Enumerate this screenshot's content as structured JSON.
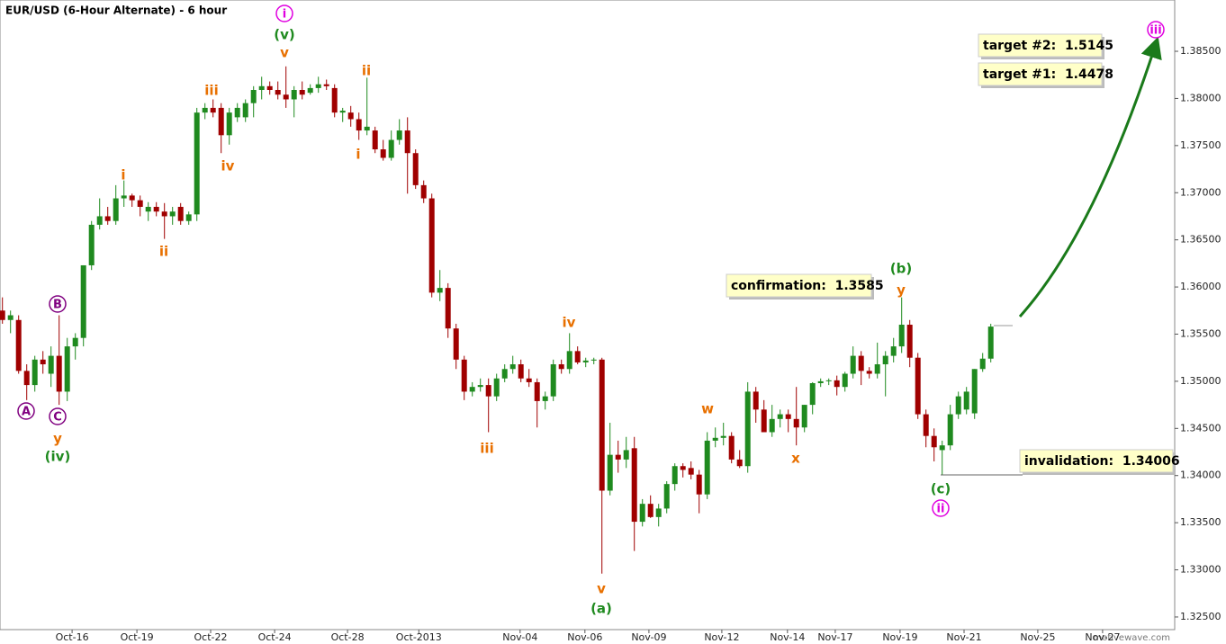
{
  "chart_data": {
    "type": "candlestick",
    "title": "EUR/USD (6-Hour Alternate) - 6 hour",
    "up_color": "#1f8a1f",
    "down_color": "#a00000",
    "ylim": [
      1.32366,
      1.39044
    ],
    "yticks": [
      {
        "value": 1.325,
        "label": "1.32500"
      },
      {
        "value": 1.33,
        "label": "1.33000"
      },
      {
        "value": 1.335,
        "label": "1.33500"
      },
      {
        "value": 1.34,
        "label": "1.34000"
      },
      {
        "value": 1.345,
        "label": "1.34500"
      },
      {
        "value": 1.35,
        "label": "1.35000"
      },
      {
        "value": 1.355,
        "label": "1.35500"
      },
      {
        "value": 1.36,
        "label": "1.36000"
      },
      {
        "value": 1.365,
        "label": "1.36500"
      },
      {
        "value": 1.37,
        "label": "1.37000"
      },
      {
        "value": 1.375,
        "label": "1.37500"
      },
      {
        "value": 1.38,
        "label": "1.38000"
      },
      {
        "value": 1.385,
        "label": "1.38500"
      }
    ],
    "xlim": [
      -0.3,
      144.7
    ],
    "xticks": [
      {
        "value": 8.6,
        "label": "Oct-16"
      },
      {
        "value": 16.6,
        "label": "Oct-19"
      },
      {
        "value": 25.7,
        "label": "Oct-22"
      },
      {
        "value": 33.6,
        "label": "Oct-24"
      },
      {
        "value": 42.6,
        "label": "Oct-28"
      },
      {
        "value": 51.4,
        "label": "Oct-2013"
      },
      {
        "value": 63.9,
        "label": "Nov-04"
      },
      {
        "value": 71.9,
        "label": "Nov-06"
      },
      {
        "value": 79.8,
        "label": "Nov-09"
      },
      {
        "value": 88.8,
        "label": "Nov-12"
      },
      {
        "value": 96.9,
        "label": "Nov-14"
      },
      {
        "value": 102.8,
        "label": "Nov-17"
      },
      {
        "value": 110.8,
        "label": "Nov-19"
      },
      {
        "value": 118.7,
        "label": "Nov-21"
      },
      {
        "value": 127.8,
        "label": "Nov-25"
      },
      {
        "value": 135.8,
        "label": "Nov-27"
      }
    ],
    "candles": [
      [
        1.3575,
        1.3589,
        1.3561,
        1.3565
      ],
      [
        1.3565,
        1.3575,
        1.3551,
        1.357
      ],
      [
        1.3565,
        1.357,
        1.3508,
        1.3511
      ],
      [
        1.3511,
        1.3518,
        1.348,
        1.3496
      ],
      [
        1.3496,
        1.3527,
        1.3489,
        1.3523
      ],
      [
        1.3523,
        1.3532,
        1.3508,
        1.3518
      ],
      [
        1.3508,
        1.3537,
        1.3494,
        1.3527
      ],
      [
        1.3527,
        1.357,
        1.3475,
        1.3489
      ],
      [
        1.3489,
        1.3546,
        1.3479,
        1.3537
      ],
      [
        1.3537,
        1.3551,
        1.3523,
        1.3546
      ],
      [
        1.3546,
        1.3623,
        1.3537,
        1.3623
      ],
      [
        1.3623,
        1.367,
        1.3618,
        1.3666
      ],
      [
        1.3666,
        1.3694,
        1.3661,
        1.3675
      ],
      [
        1.3675,
        1.3685,
        1.3666,
        1.367
      ],
      [
        1.367,
        1.3708,
        1.3666,
        1.3694
      ],
      [
        1.3694,
        1.3713,
        1.3685,
        1.3697
      ],
      [
        1.3697,
        1.3699,
        1.3685,
        1.3692
      ],
      [
        1.3692,
        1.3697,
        1.3675,
        1.3685
      ],
      [
        1.368,
        1.369,
        1.367,
        1.3685
      ],
      [
        1.3685,
        1.369,
        1.3675,
        1.368
      ],
      [
        1.368,
        1.3689,
        1.3651,
        1.3675
      ],
      [
        1.3675,
        1.3685,
        1.3666,
        1.368
      ],
      [
        1.3685,
        1.3689,
        1.3666,
        1.367
      ],
      [
        1.367,
        1.368,
        1.3666,
        1.3677
      ],
      [
        1.3677,
        1.379,
        1.367,
        1.3785
      ],
      [
        1.3785,
        1.3795,
        1.3778,
        1.379
      ],
      [
        1.379,
        1.3799,
        1.378,
        1.3785
      ],
      [
        1.379,
        1.3795,
        1.3742,
        1.3761
      ],
      [
        1.3761,
        1.379,
        1.3751,
        1.3785
      ],
      [
        1.378,
        1.3795,
        1.3775,
        1.379
      ],
      [
        1.378,
        1.3799,
        1.3775,
        1.3795
      ],
      [
        1.3795,
        1.3813,
        1.378,
        1.3809
      ],
      [
        1.3809,
        1.3823,
        1.3799,
        1.3813
      ],
      [
        1.3813,
        1.3818,
        1.3804,
        1.3809
      ],
      [
        1.3809,
        1.3818,
        1.3799,
        1.3804
      ],
      [
        1.3804,
        1.3834,
        1.379,
        1.3799
      ],
      [
        1.3799,
        1.3813,
        1.378,
        1.3809
      ],
      [
        1.3809,
        1.3818,
        1.3799,
        1.3804
      ],
      [
        1.3806,
        1.3815,
        1.3804,
        1.3811
      ],
      [
        1.3811,
        1.3823,
        1.3806,
        1.3815
      ],
      [
        1.3815,
        1.382,
        1.3809,
        1.3813
      ],
      [
        1.3811,
        1.3815,
        1.378,
        1.3785
      ],
      [
        1.3785,
        1.379,
        1.3775,
        1.3787
      ],
      [
        1.3785,
        1.3792,
        1.377,
        1.3778
      ],
      [
        1.3778,
        1.3785,
        1.3756,
        1.3766
      ],
      [
        1.3766,
        1.3822,
        1.3761,
        1.377
      ],
      [
        1.3766,
        1.377,
        1.3742,
        1.3746
      ],
      [
        1.3746,
        1.3756,
        1.3734,
        1.3737
      ],
      [
        1.3737,
        1.3766,
        1.3734,
        1.3756
      ],
      [
        1.3756,
        1.3778,
        1.3751,
        1.3766
      ],
      [
        1.3766,
        1.378,
        1.3699,
        1.3742
      ],
      [
        1.3742,
        1.3746,
        1.3704,
        1.3708
      ],
      [
        1.3708,
        1.3713,
        1.3689,
        1.3694
      ],
      [
        1.3694,
        1.3699,
        1.3589,
        1.3594
      ],
      [
        1.3594,
        1.3618,
        1.3585,
        1.3599
      ],
      [
        1.3599,
        1.3604,
        1.3546,
        1.3556
      ],
      [
        1.3556,
        1.3561,
        1.3513,
        1.3523
      ],
      [
        1.3523,
        1.3527,
        1.348,
        1.3489
      ],
      [
        1.3489,
        1.3499,
        1.3484,
        1.3494
      ],
      [
        1.3494,
        1.3503,
        1.3489,
        1.3496
      ],
      [
        1.3496,
        1.3503,
        1.3446,
        1.3484
      ],
      [
        1.3484,
        1.3508,
        1.3479,
        1.3503
      ],
      [
        1.3503,
        1.3518,
        1.3499,
        1.3513
      ],
      [
        1.3513,
        1.3527,
        1.3508,
        1.3518
      ],
      [
        1.3518,
        1.3523,
        1.3499,
        1.3503
      ],
      [
        1.3503,
        1.3513,
        1.3494,
        1.3499
      ],
      [
        1.3499,
        1.3503,
        1.3451,
        1.3479
      ],
      [
        1.3479,
        1.3489,
        1.347,
        1.3484
      ],
      [
        1.3484,
        1.3523,
        1.3479,
        1.3518
      ],
      [
        1.3518,
        1.3523,
        1.3508,
        1.3513
      ],
      [
        1.3513,
        1.3551,
        1.3508,
        1.3532
      ],
      [
        1.3532,
        1.3537,
        1.3518,
        1.352
      ],
      [
        1.352,
        1.3525,
        1.3515,
        1.3522
      ],
      [
        1.3522,
        1.3525,
        1.3518,
        1.3523
      ],
      [
        1.3523,
        1.3525,
        1.3296,
        1.3384
      ],
      [
        1.3384,
        1.3456,
        1.3379,
        1.3422
      ],
      [
        1.3422,
        1.3437,
        1.3403,
        1.3417
      ],
      [
        1.3417,
        1.3441,
        1.3408,
        1.3427
      ],
      [
        1.3429,
        1.3441,
        1.332,
        1.3351
      ],
      [
        1.3351,
        1.3375,
        1.3346,
        1.337
      ],
      [
        1.337,
        1.3379,
        1.3355,
        1.3356
      ],
      [
        1.3356,
        1.337,
        1.3346,
        1.3365
      ],
      [
        1.3365,
        1.3394,
        1.336,
        1.3391
      ],
      [
        1.3391,
        1.3413,
        1.3384,
        1.341
      ],
      [
        1.341,
        1.3413,
        1.3398,
        1.3406
      ],
      [
        1.3408,
        1.3415,
        1.3396,
        1.3401
      ],
      [
        1.3401,
        1.3406,
        1.336,
        1.338
      ],
      [
        1.338,
        1.3446,
        1.3375,
        1.3437
      ],
      [
        1.3437,
        1.3451,
        1.343,
        1.344
      ],
      [
        1.344,
        1.3456,
        1.3432,
        1.3442
      ],
      [
        1.3442,
        1.3446,
        1.3413,
        1.3417
      ],
      [
        1.3417,
        1.3427,
        1.3408,
        1.341
      ],
      [
        1.341,
        1.3499,
        1.3403,
        1.3489
      ],
      [
        1.3489,
        1.3494,
        1.3456,
        1.347
      ],
      [
        1.347,
        1.348,
        1.3446,
        1.3446
      ],
      [
        1.3446,
        1.3475,
        1.3441,
        1.346
      ],
      [
        1.346,
        1.347,
        1.3451,
        1.3465
      ],
      [
        1.3465,
        1.347,
        1.3446,
        1.346
      ],
      [
        1.346,
        1.3494,
        1.3432,
        1.3451
      ],
      [
        1.3451,
        1.3475,
        1.3446,
        1.3475
      ],
      [
        1.3475,
        1.3499,
        1.3465,
        1.3498
      ],
      [
        1.3498,
        1.3503,
        1.3494,
        1.35
      ],
      [
        1.35,
        1.3503,
        1.3496,
        1.3501
      ],
      [
        1.3501,
        1.3506,
        1.3485,
        1.3494
      ],
      [
        1.3494,
        1.351,
        1.3489,
        1.3508
      ],
      [
        1.3508,
        1.3537,
        1.3503,
        1.3527
      ],
      [
        1.3527,
        1.3532,
        1.3496,
        1.3511
      ],
      [
        1.3511,
        1.3515,
        1.3503,
        1.3508
      ],
      [
        1.3508,
        1.3541,
        1.3503,
        1.3518
      ],
      [
        1.3518,
        1.3532,
        1.3484,
        1.3527
      ],
      [
        1.3527,
        1.3546,
        1.352,
        1.3537
      ],
      [
        1.3537,
        1.3589,
        1.353,
        1.356
      ],
      [
        1.356,
        1.3565,
        1.3515,
        1.3525
      ],
      [
        1.3525,
        1.353,
        1.346,
        1.3465
      ],
      [
        1.3465,
        1.347,
        1.343,
        1.3442
      ],
      [
        1.3442,
        1.345,
        1.3415,
        1.343
      ],
      [
        1.3427,
        1.3437,
        1.3401,
        1.3432
      ],
      [
        1.3432,
        1.3475,
        1.3427,
        1.3465
      ],
      [
        1.3465,
        1.3489,
        1.346,
        1.3484
      ],
      [
        1.347,
        1.3494,
        1.3465,
        1.3489
      ],
      [
        1.3466,
        1.3513,
        1.346,
        1.3513
      ],
      [
        1.3513,
        1.353,
        1.351,
        1.3524
      ],
      [
        1.3524,
        1.3561,
        1.352,
        1.3558
      ]
    ],
    "annotations": [
      {
        "text": "i",
        "color": "#e000e0",
        "circled": true
      },
      {
        "text": "(v)",
        "color": "#1f8a1f"
      },
      {
        "text": "v",
        "color": "#e87000"
      },
      {
        "text": "iii",
        "color": "#e87000"
      },
      {
        "text": "iv",
        "color": "#e87000"
      },
      {
        "text": "i",
        "color": "#e87000"
      },
      {
        "text": "ii",
        "color": "#e87000"
      },
      {
        "text": "B",
        "color": "#800080",
        "circled": true
      },
      {
        "text": "A",
        "color": "#800080",
        "circled": true
      },
      {
        "text": "C",
        "color": "#800080",
        "circled": true
      },
      {
        "text": "y",
        "color": "#e87000"
      },
      {
        "text": "(iv)",
        "color": "#1f8a1f"
      },
      {
        "text": "ii",
        "color": "#e87000"
      },
      {
        "text": "i",
        "color": "#e87000"
      },
      {
        "text": "iii",
        "color": "#e87000"
      },
      {
        "text": "iv",
        "color": "#e87000"
      },
      {
        "text": "v",
        "color": "#e87000"
      },
      {
        "text": "(a)",
        "color": "#1f8a1f"
      },
      {
        "text": "w",
        "color": "#e87000"
      },
      {
        "text": "x",
        "color": "#e87000"
      },
      {
        "text": "(b)",
        "color": "#1f8a1f"
      },
      {
        "text": "y",
        "color": "#e87000"
      },
      {
        "text": "(c)",
        "color": "#1f8a1f"
      },
      {
        "text": "ii",
        "color": "#e000e0",
        "circled": true
      },
      {
        "text": "iii",
        "color": "#e000e0",
        "circled": true
      }
    ],
    "boxes": [
      "confirmation:  1.3585",
      "target #2:  1.5145",
      "target #1:  1.4478",
      "invalidation:  1.34006"
    ],
    "watermark": "motivewave.com"
  }
}
